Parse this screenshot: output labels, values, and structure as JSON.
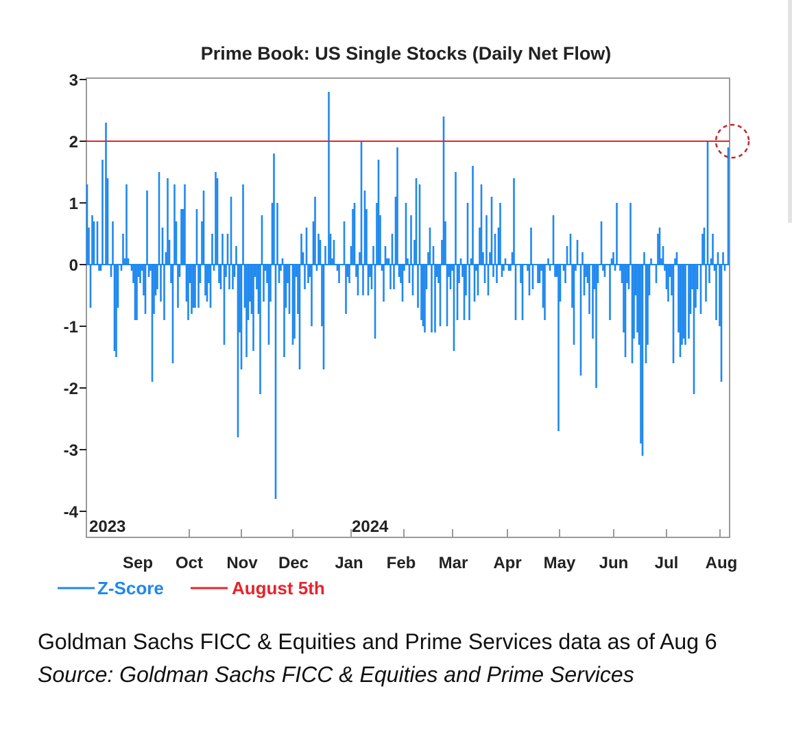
{
  "chart_data": {
    "type": "bar",
    "title": "Prime Book: US Single Stocks (Daily Net Flow)",
    "xlabel": "",
    "ylabel": "",
    "ylim": [
      -4,
      3
    ],
    "y_ticks": [
      "3",
      "2",
      "1",
      "0",
      "-1",
      "-2",
      "-3",
      "-4"
    ],
    "x_ticks": [
      "Sep",
      "Oct",
      "Nov",
      "Dec",
      "Jan",
      "Feb",
      "Mar",
      "Apr",
      "May",
      "Jun",
      "Jul",
      "Aug"
    ],
    "year_labels": [
      "2023",
      "2024"
    ],
    "reference_line": {
      "name": "August 5th",
      "value": 2.0,
      "color": "#e8232a"
    },
    "highlight": "Aug 5 endpoint circled",
    "legend": {
      "position": "bottom-left"
    },
    "grid": false,
    "series": [
      {
        "name": "Z-Score",
        "color": "#1e88ee",
        "values": [
          1.3,
          0.6,
          -0.7,
          0.8,
          0.7,
          0.0,
          0.7,
          -0.1,
          -0.1,
          1.7,
          0.0,
          2.3,
          1.4,
          0.0,
          -0.2,
          0.7,
          -1.4,
          -1.5,
          -0.7,
          0.0,
          -0.1,
          0.5,
          0.1,
          1.3,
          0.1,
          0.0,
          -0.1,
          -0.3,
          -0.9,
          -0.9,
          -0.2,
          -0.3,
          -0.1,
          -0.5,
          -0.8,
          1.2,
          -0.2,
          -0.1,
          -1.9,
          -0.8,
          -0.5,
          -0.4,
          1.5,
          -0.6,
          0.6,
          -0.9,
          0.2,
          1.4,
          0.4,
          -0.3,
          -1.6,
          1.3,
          0.7,
          -0.7,
          -0.2,
          0.9,
          0.9,
          1.3,
          -0.6,
          -0.9,
          -0.3,
          -0.8,
          -0.7,
          -0.7,
          0.9,
          -0.7,
          -0.3,
          0.7,
          1.2,
          -0.5,
          -0.6,
          -0.3,
          -0.7,
          0.5,
          -0.1,
          1.5,
          1.4,
          -0.3,
          -0.4,
          0.5,
          -1.3,
          -0.2,
          0.5,
          -0.4,
          1.1,
          -0.4,
          -0.2,
          0.3,
          -2.8,
          -1.1,
          -1.7,
          1.3,
          -0.7,
          -1.5,
          -0.9,
          -0.6,
          -0.8,
          -1.4,
          -0.2,
          -0.4,
          -0.8,
          -2.1,
          0.8,
          -0.6,
          -0.1,
          -0.3,
          -1.3,
          -0.6,
          1.0,
          1.8,
          -3.8,
          1.0,
          -0.3,
          -0.1,
          0.1,
          -1.5,
          -0.7,
          -0.3,
          -0.8,
          0.0,
          -1.3,
          -1.2,
          -0.2,
          -0.8,
          -1.7,
          0.5,
          0.2,
          -0.4,
          0.6,
          -0.3,
          -0.2,
          -1.0,
          0.7,
          1.1,
          -0.1,
          0.5,
          0.4,
          -1.0,
          -1.7,
          0.3,
          0.0,
          2.8,
          0.5,
          0.1,
          0.4,
          0.0,
          -0.1,
          -0.3,
          0.0,
          0.0,
          0.7,
          -0.8,
          -0.2,
          -0.3,
          0.3,
          0.9,
          1.0,
          -0.2,
          -0.5,
          0.2,
          2.0,
          -0.5,
          1.2,
          0.9,
          -0.5,
          -0.2,
          -0.4,
          0.3,
          -1.2,
          1.0,
          1.7,
          0.8,
          -0.1,
          -0.6,
          0.3,
          0.1,
          0.1,
          -0.4,
          0.5,
          -0.4,
          1.1,
          1.9,
          -0.2,
          -0.3,
          -0.6,
          -0.1,
          1.0,
          0.1,
          -0.3,
          0.8,
          -0.5,
          0.4,
          1.4,
          -0.7,
          1.3,
          -0.9,
          -1.0,
          -1.1,
          -0.4,
          0.2,
          0.6,
          -1.1,
          0.3,
          -1.1,
          -0.2,
          -0.3,
          -1.0,
          0.4,
          2.4,
          0.7,
          -1.0,
          -0.2,
          -0.4,
          -0.1,
          -1.4,
          1.5,
          -0.9,
          -0.3,
          0.1,
          -0.2,
          -0.9,
          -0.5,
          1.0,
          -0.9,
          0.1,
          1.6,
          -0.6,
          -0.1,
          -0.5,
          0.6,
          1.3,
          0.2,
          -0.3,
          0.8,
          -0.5,
          0.2,
          1.1,
          -0.2,
          0.5,
          -0.3,
          0.6,
          1.0,
          -0.2,
          -0.1,
          0.1,
          0.0,
          -0.1,
          -0.1,
          0.2,
          1.4,
          -0.9,
          0.0,
          0.0,
          -0.3,
          -0.9,
          0.0,
          0.0,
          -0.1,
          -0.5,
          0.6,
          -0.4,
          0.0,
          0.0,
          -0.3,
          -0.3,
          -0.1,
          -0.7,
          -0.9,
          0.0,
          0.1,
          -0.1,
          0.0,
          0.8,
          -0.2,
          -0.2,
          -2.7,
          -0.6,
          0.0,
          -0.1,
          -0.3,
          0.3,
          0.0,
          0.5,
          -0.7,
          -1.3,
          -0.1,
          0.4,
          0.0,
          -1.8,
          0.2,
          -0.5,
          -0.2,
          -0.3,
          -0.8,
          0.0,
          -1.2,
          -0.4,
          -2.0,
          -0.3,
          0.0,
          0.7,
          -0.1,
          -0.2,
          0.0,
          0.0,
          -0.9,
          0.1,
          0.2,
          -0.1,
          1.0,
          0.0,
          -0.1,
          -0.3,
          -1.1,
          -1.5,
          -0.3,
          -0.4,
          1.0,
          -1.6,
          -1.2,
          -0.5,
          -1.1,
          -1.3,
          -2.9,
          -3.1,
          0.2,
          -1.6,
          -1.3,
          -0.5,
          0.1,
          0.0,
          0.0,
          -0.3,
          0.5,
          0.6,
          0.1,
          0.3,
          -0.1,
          -0.4,
          -0.6,
          -0.2,
          -0.5,
          -1.6,
          0.1,
          0.2,
          -1.1,
          -1.5,
          -1.3,
          -1.2,
          -1.3,
          0.0,
          -1.2,
          -0.8,
          -0.4,
          -2.1,
          -0.7,
          -0.4,
          0.0,
          -0.8,
          0.5,
          0.6,
          -0.6,
          2.0,
          -0.3,
          0.1,
          0.5,
          -0.1,
          -0.9,
          0.2,
          -1.0,
          -1.9,
          0.2,
          -0.1,
          0.0,
          1.9
        ]
      }
    ]
  },
  "caption": {
    "main": "Goldman Sachs FICC & Equities and Prime Services data as of Aug 6",
    "source": "Source: Goldman Sachs FICC & Equities and Prime Services"
  }
}
